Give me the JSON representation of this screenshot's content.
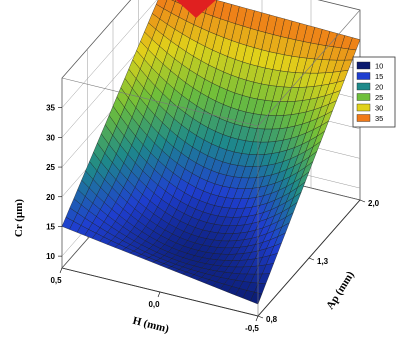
{
  "chart_data": {
    "type": "surface",
    "title": "",
    "zlabel": "Cr (µm)",
    "xlabel": "H (mm)",
    "ylabel": "Ap (mm)",
    "z_ticks": [
      "10",
      "15",
      "20",
      "25",
      "30",
      "35"
    ],
    "x_ticks": [
      "0,5",
      "0,0",
      "-0,5"
    ],
    "y_ticks": [
      "0,8",
      "1,3",
      "2,0"
    ],
    "zlim": [
      8,
      40
    ],
    "legend": {
      "position": "top-right",
      "entries": [
        {
          "label": "10",
          "color": "#0a1a6e"
        },
        {
          "label": "15",
          "color": "#1f3fd0"
        },
        {
          "label": "20",
          "color": "#1e8a8a"
        },
        {
          "label": "25",
          "color": "#6fbf3a"
        },
        {
          "label": "30",
          "color": "#e0d21a"
        },
        {
          "label": "35",
          "color": "#f07a18"
        }
      ]
    },
    "surface": {
      "corners": [
        {
          "H": "0,5",
          "Ap": "2,0",
          "Cr": 36
        },
        {
          "H": "0,5",
          "Ap": "0,8",
          "Cr": 15
        },
        {
          "H": "-0,5",
          "Ap": "0,8",
          "Cr": 10
        },
        {
          "H": "-0,5",
          "Ap": "2,0",
          "Cr": 35
        }
      ],
      "center_Cr": 15
    }
  },
  "colors": {
    "top_marker": "#e02020"
  }
}
